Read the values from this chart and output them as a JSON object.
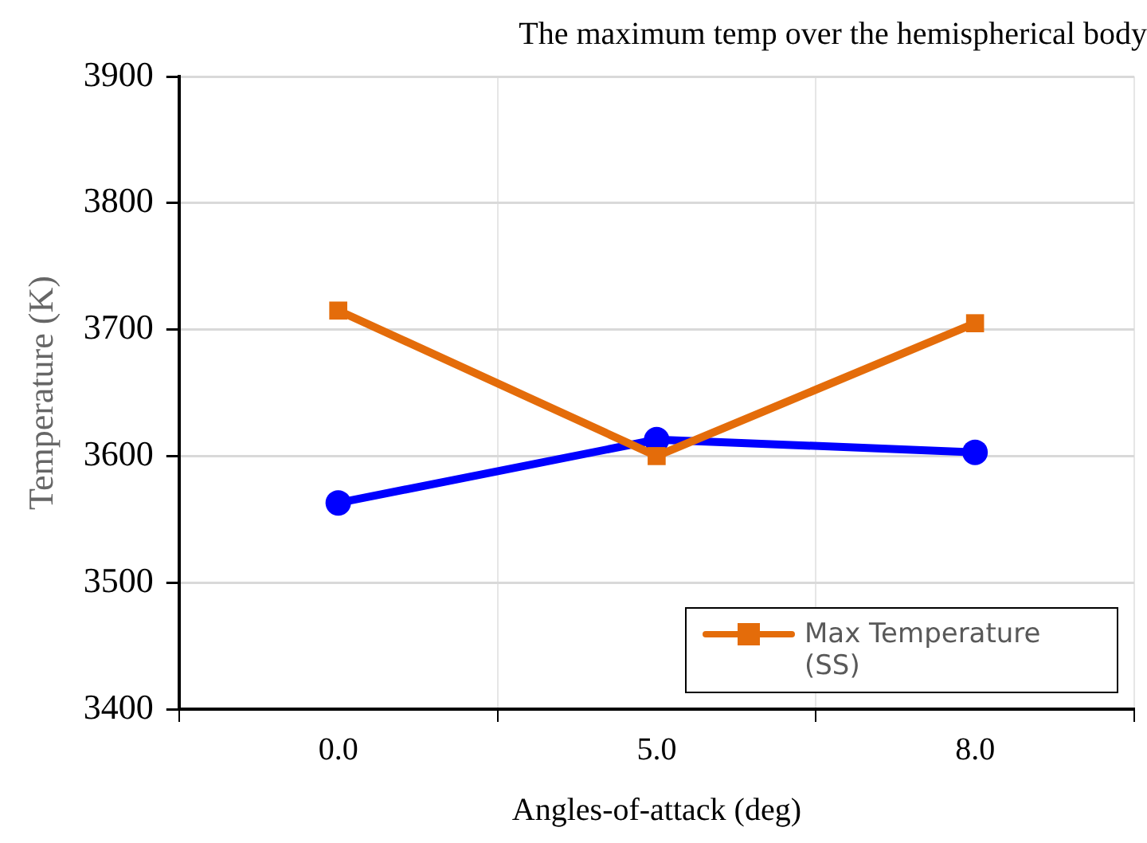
{
  "chart_data": {
    "type": "line",
    "title": "The maximum temp over the hemispherical body",
    "xlabel": "Angles-of-attack (deg)",
    "ylabel": "Temperature (K)",
    "categories": [
      "0.0",
      "5.0",
      "8.0"
    ],
    "series": [
      {
        "name": "Max Temperature (SS)",
        "color": "#e46c0a",
        "marker": "square",
        "values": [
          3715,
          3600,
          3705
        ]
      },
      {
        "color": "#0000ff",
        "marker": "circle",
        "values": [
          3563,
          3613,
          3603
        ]
      }
    ],
    "ylim": [
      3400,
      3900
    ],
    "yticks": [
      3400,
      3500,
      3600,
      3700,
      3800,
      3900
    ],
    "grid": true,
    "legend": "bottom right",
    "line_style": "solid"
  }
}
